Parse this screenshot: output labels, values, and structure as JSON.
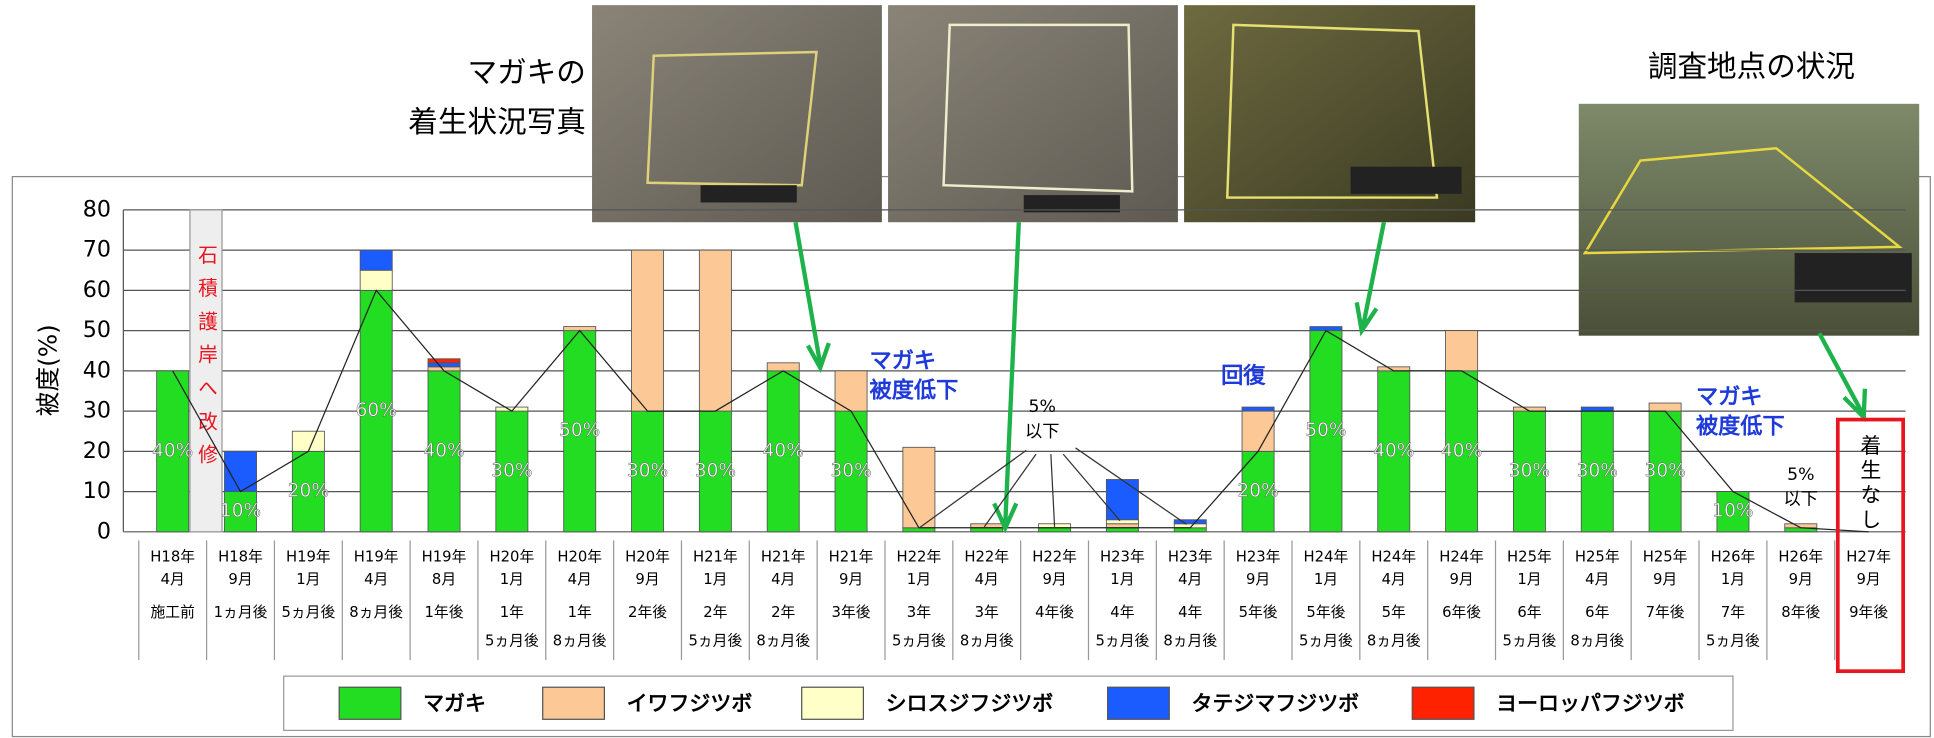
{
  "chart_data": {
    "type": "stacked_bar",
    "ylabel": "被度(%)",
    "ylim": [
      0,
      80
    ],
    "yticks": [
      0,
      10,
      20,
      30,
      40,
      50,
      60,
      70,
      80
    ],
    "grid": true,
    "trend_line": true,
    "categories": [
      [
        "H18年",
        "4月"
      ],
      [
        "H18年",
        "9月"
      ],
      [
        "H19年",
        "1月"
      ],
      [
        "H19年",
        "4月"
      ],
      [
        "H19年",
        "8月"
      ],
      [
        "H20年",
        "1月"
      ],
      [
        "H20年",
        "4月"
      ],
      [
        "H20年",
        "9月"
      ],
      [
        "H21年",
        "1月"
      ],
      [
        "H21年",
        "4月"
      ],
      [
        "H21年",
        "9月"
      ],
      [
        "H22年",
        "1月"
      ],
      [
        "H22年",
        "4月"
      ],
      [
        "H22年",
        "9月"
      ],
      [
        "H23年",
        "1月"
      ],
      [
        "H23年",
        "4月"
      ],
      [
        "H23年",
        "9月"
      ],
      [
        "H24年",
        "1月"
      ],
      [
        "H24年",
        "4月"
      ],
      [
        "H24年",
        "9月"
      ],
      [
        "H25年",
        "1月"
      ],
      [
        "H25年",
        "4月"
      ],
      [
        "H25年",
        "9月"
      ],
      [
        "H26年",
        "1月"
      ],
      [
        "H26年",
        "9月"
      ],
      [
        "H27年",
        "9月"
      ]
    ],
    "elapsed": [
      [
        "施工前"
      ],
      [
        "1ヵ月後"
      ],
      [
        "5ヵ月後"
      ],
      [
        "8ヵ月後"
      ],
      [
        "1年後"
      ],
      [
        "1年",
        "5ヵ月後"
      ],
      [
        "1年",
        "8ヵ月後"
      ],
      [
        "2年後"
      ],
      [
        "2年",
        "5ヵ月後"
      ],
      [
        "2年",
        "8ヵ月後"
      ],
      [
        "3年後"
      ],
      [
        "3年",
        "5ヵ月後"
      ],
      [
        "3年",
        "8ヵ月後"
      ],
      [
        "4年後"
      ],
      [
        "4年",
        "5ヵ月後"
      ],
      [
        "4年",
        "8ヵ月後"
      ],
      [
        "5年後"
      ],
      [
        "5年後",
        "5ヵ月後"
      ],
      [
        "5年",
        "8ヵ月後"
      ],
      [
        "6年後"
      ],
      [
        "6年",
        "5ヵ月後"
      ],
      [
        "6年",
        "8ヵ月後"
      ],
      [
        "7年後"
      ],
      [
        "7年",
        "5ヵ月後"
      ],
      [
        "8年後"
      ],
      [
        "9年後"
      ]
    ],
    "series": [
      {
        "name": "マガキ",
        "color": "#22dd22",
        "values": [
          40,
          10,
          20,
          60,
          40,
          30,
          50,
          30,
          30,
          40,
          30,
          1,
          1,
          1,
          1,
          1,
          20,
          50,
          40,
          40,
          30,
          30,
          30,
          10,
          1,
          0
        ],
        "value_labels": [
          "40%",
          "10%",
          "20%",
          "60%",
          "40%",
          "30%",
          "50%",
          "30%",
          "30%",
          "40%",
          "30%",
          null,
          null,
          null,
          null,
          null,
          "20%",
          "50%",
          "40%",
          "40%",
          "30%",
          "30%",
          "30%",
          "10%",
          null,
          null
        ]
      },
      {
        "name": "イワフジツボ",
        "color": "#fbc896",
        "values": [
          0,
          0,
          0,
          0,
          1,
          0,
          1,
          40,
          40,
          2,
          10,
          20,
          1,
          0,
          1,
          0,
          10,
          0,
          1,
          10,
          1,
          0,
          2,
          0,
          1,
          0
        ]
      },
      {
        "name": "シロスジフジツボ",
        "color": "#ffffc8",
        "values": [
          0,
          0,
          5,
          5,
          0,
          1,
          0,
          0,
          0,
          0,
          0,
          0,
          0,
          1,
          1,
          1,
          0,
          0,
          0,
          0,
          0,
          0,
          0,
          0,
          0,
          0
        ]
      },
      {
        "name": "タテジマフジツボ",
        "color": "#1a5cff",
        "values": [
          0,
          10,
          0,
          5,
          1,
          0,
          0,
          0,
          0,
          0,
          0,
          0,
          0,
          0,
          10,
          1,
          1,
          1,
          0,
          0,
          0,
          1,
          0,
          0,
          0,
          0
        ]
      },
      {
        "name": "ヨーロッパフジツボ",
        "color": "#ff2200",
        "values": [
          0,
          0,
          0,
          0,
          1,
          0,
          0,
          0,
          0,
          0,
          0,
          0,
          0,
          0,
          0,
          0,
          0,
          0,
          0,
          0,
          0,
          0,
          0,
          0,
          0,
          0
        ]
      }
    ],
    "wall_label": "石積護岸へ改修",
    "wall_value": 80,
    "no_growth_label": "着生なし",
    "annotations": [
      {
        "lines": [
          "マガキ",
          "被度低下"
        ]
      },
      {
        "lines": [
          "5%",
          "以下"
        ]
      },
      {
        "lines": [
          "回復"
        ]
      },
      {
        "lines": [
          "マガキ",
          "被度低下"
        ]
      },
      {
        "lines": [
          "5%",
          "以下"
        ]
      }
    ],
    "photo_caption": [
      "マガキの",
      "着生状況写真"
    ],
    "site_caption": "調査地点の状況"
  }
}
